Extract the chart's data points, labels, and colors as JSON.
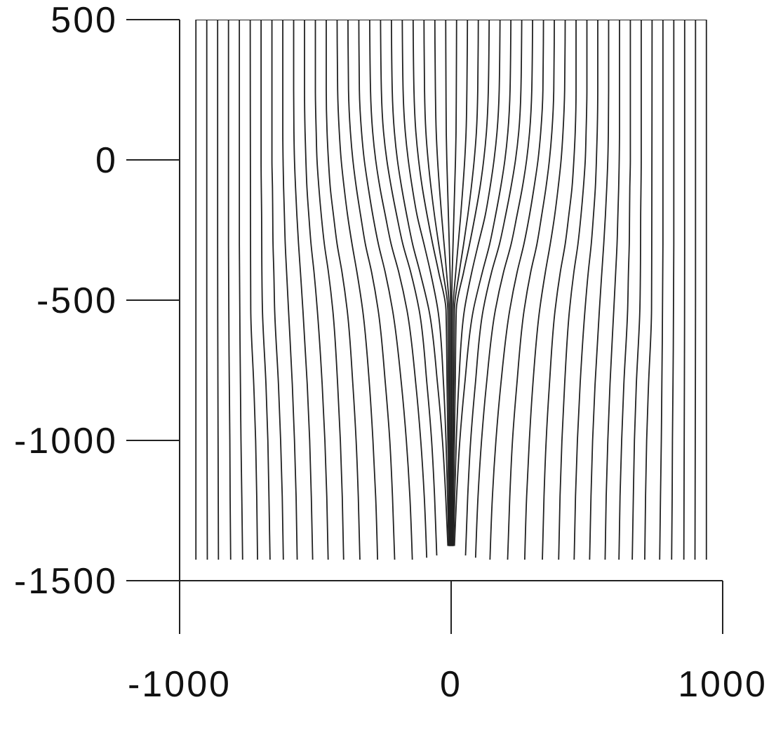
{
  "chart_data": {
    "type": "line",
    "xlim": [
      -1000,
      1000
    ],
    "ylim": [
      -1500,
      500
    ],
    "xticks": [
      -1000,
      0,
      1000
    ],
    "yticks": [
      -1500,
      -1000,
      -500,
      0,
      500
    ],
    "grid": false,
    "marker": "none",
    "line_style": "solid",
    "series": [
      {
        "color": "#222222",
        "x": [
          -940,
          -940
        ],
        "values": [
          500,
          -1425
        ]
      },
      {
        "color": "#222222",
        "x": [
          -900,
          -900,
          -899,
          -898
        ],
        "values": [
          500,
          -500,
          -1000,
          -1425
        ]
      },
      {
        "color": "#222222",
        "x": [
          -860,
          -860,
          -859,
          -858,
          -857
        ],
        "values": [
          500,
          -300,
          -800,
          -1100,
          -1425
        ]
      },
      {
        "color": "#222222",
        "x": [
          -820,
          -820,
          -817,
          -815,
          -814,
          -812
        ],
        "values": [
          500,
          -300,
          -800,
          -1000,
          -1200,
          -1425
        ]
      },
      {
        "color": "#222222",
        "x": [
          -780,
          -780,
          -776,
          -774,
          -771,
          -768
        ],
        "values": [
          500,
          -300,
          -800,
          -1000,
          -1200,
          -1425
        ]
      },
      {
        "color": "#222222",
        "x": [
          -740,
          -739,
          -738,
          -727,
          -720,
          -716,
          -713
        ],
        "values": [
          500,
          -200,
          -534,
          -800,
          -1000,
          -1200,
          -1425
        ]
      },
      {
        "color": "#222222",
        "x": [
          -700,
          -700,
          -698,
          -697,
          -695,
          -682,
          -675,
          -671,
          -667
        ],
        "values": [
          500,
          0,
          -200,
          -400,
          -534,
          -800,
          -1000,
          -1200,
          -1425
        ]
      },
      {
        "color": "#222222",
        "x": [
          -660,
          -660,
          -660,
          -660,
          -658,
          -657,
          -656,
          -653,
          -650,
          -636,
          -628,
          -622,
          -618
        ],
        "values": [
          500,
          250,
          100,
          0,
          -100,
          -200,
          -300,
          -400,
          -534,
          -800,
          -1000,
          -1200,
          -1425
        ]
      },
      {
        "color": "#222222",
        "x": [
          -620,
          -620,
          -620,
          -619,
          -617,
          -614,
          -611,
          -606,
          -599,
          -585,
          -577,
          -571,
          -567
        ],
        "values": [
          500,
          250,
          100,
          0,
          -100,
          -200,
          -300,
          -400,
          -534,
          -800,
          -1000,
          -1200,
          -1425
        ]
      },
      {
        "color": "#222222",
        "x": [
          -580,
          -580,
          -579,
          -577,
          -573,
          -568,
          -562,
          -555,
          -546,
          -530,
          -521,
          -515,
          -510
        ],
        "values": [
          500,
          250,
          100,
          0,
          -100,
          -200,
          -300,
          -400,
          -534,
          -800,
          -1000,
          -1200,
          -1425
        ]
      },
      {
        "color": "#222222",
        "x": [
          -540,
          -540,
          -538,
          -535,
          -531,
          -524,
          -516,
          -505,
          -493,
          -475,
          -465,
          -458,
          -453
        ],
        "values": [
          500,
          250,
          100,
          0,
          -100,
          -200,
          -300,
          -400,
          -534,
          -800,
          -1000,
          -1200,
          -1425
        ]
      },
      {
        "color": "#222222",
        "x": [
          -500,
          -500,
          -497,
          -494,
          -487,
          -478,
          -467,
          -452,
          -436,
          -418,
          -408,
          -401,
          -396
        ],
        "values": [
          500,
          250,
          100,
          0,
          -100,
          -200,
          -300,
          -400,
          -534,
          -800,
          -1000,
          -1200,
          -1425
        ]
      },
      {
        "color": "#222222",
        "x": [
          -460,
          -460,
          -457,
          -452,
          -445,
          -433,
          -420,
          -402,
          -383,
          -362,
          -350,
          -342,
          -336
        ],
        "values": [
          500,
          250,
          100,
          0,
          -100,
          -200,
          -300,
          -400,
          -534,
          -800,
          -1000,
          -1200,
          -1425
        ]
      },
      {
        "color": "#222222",
        "x": [
          -420,
          -418,
          -412,
          -405,
          -394,
          -381,
          -365,
          -347,
          -326,
          -301,
          -288,
          -278,
          -271
        ],
        "values": [
          500,
          250,
          100,
          0,
          -100,
          -200,
          -300,
          -400,
          -534,
          -800,
          -1000,
          -1200,
          -1425
        ]
      },
      {
        "color": "#222222",
        "x": [
          -380,
          -378,
          -371,
          -362,
          -349,
          -333,
          -316,
          -293,
          -269,
          -242,
          -226,
          -216,
          -208
        ],
        "values": [
          500,
          250,
          100,
          0,
          -100,
          -200,
          -300,
          -400,
          -534,
          -800,
          -1000,
          -1200,
          -1425
        ]
      },
      {
        "color": "#222222",
        "x": [
          -340,
          -338,
          -330,
          -320,
          -305,
          -288,
          -268,
          -243,
          -216,
          -183,
          -165,
          -152,
          -143
        ],
        "values": [
          500,
          250,
          100,
          0,
          -100,
          -200,
          -300,
          -400,
          -534,
          -800,
          -1000,
          -1200,
          -1425
        ]
      },
      {
        "color": "#222222",
        "x": [
          -300,
          -297,
          -289,
          -278,
          -262,
          -242,
          -221,
          -193,
          -163,
          -130,
          -112,
          -99,
          -90
        ],
        "values": [
          500,
          250,
          100,
          0,
          -100,
          -200,
          -300,
          -400,
          -534,
          -800,
          -1000,
          -1200,
          -1418
        ]
      },
      {
        "color": "#222222",
        "x": [
          -260,
          -257,
          -249,
          -237,
          -220,
          -200,
          -178,
          -149,
          -118,
          -89,
          -72,
          -61,
          -53
        ],
        "values": [
          500,
          250,
          100,
          0,
          -100,
          -200,
          -300,
          -400,
          -534,
          -800,
          -1000,
          -1200,
          -1410
        ]
      },
      {
        "color": "#222222",
        "x": [
          -220,
          -217,
          -209,
          -198,
          -182,
          -163,
          -142,
          -115,
          -82,
          -50,
          -32,
          -20,
          -12
        ],
        "values": [
          500,
          250,
          100,
          0,
          -100,
          -200,
          -300,
          -400,
          -534,
          -800,
          -1000,
          -1200,
          -1376
        ]
      },
      {
        "color": "#222222",
        "x": [
          -180,
          -177,
          -169,
          -158,
          -143,
          -125,
          -100,
          -76,
          -49,
          -28,
          -19,
          -13,
          -9
        ],
        "values": [
          500,
          250,
          100,
          0,
          -100,
          -200,
          -300,
          -400,
          -534,
          -800,
          -1000,
          -1200,
          -1376
        ]
      },
      {
        "color": "#222222",
        "x": [
          -140,
          -137,
          -130,
          -120,
          -106,
          -88,
          -68,
          -46,
          -19,
          -15,
          -12,
          -9,
          -7
        ],
        "values": [
          500,
          250,
          100,
          0,
          -100,
          -200,
          -300,
          -400,
          -534,
          -800,
          -1000,
          -1200,
          -1376
        ]
      },
      {
        "color": "#222222",
        "x": [
          -100,
          -98,
          -93,
          -85,
          -74,
          -61,
          -46,
          -30,
          -12,
          -10,
          -8,
          -6,
          -5
        ],
        "values": [
          500,
          250,
          100,
          0,
          -100,
          -200,
          -300,
          -400,
          -534,
          -800,
          -1000,
          -1200,
          -1376
        ]
      },
      {
        "color": "#222222",
        "x": [
          -60,
          -58,
          -55,
          -50,
          -43,
          -35,
          -26,
          -17,
          -7,
          -6,
          -5,
          -4,
          -3
        ],
        "values": [
          500,
          250,
          100,
          0,
          -100,
          -200,
          -300,
          -400,
          -534,
          -800,
          -1000,
          -1200,
          -1376
        ]
      },
      {
        "color": "#222222",
        "x": [
          -20,
          -19,
          -18,
          -16,
          -13,
          -10,
          -7,
          -4,
          -2,
          -2,
          -1,
          -1,
          -1
        ],
        "values": [
          500,
          250,
          100,
          0,
          -100,
          -200,
          -300,
          -400,
          -534,
          -800,
          -1000,
          -1200,
          -1376
        ]
      },
      {
        "color": "#222222",
        "x": [
          20,
          19,
          18,
          16,
          13,
          10,
          7,
          4,
          2,
          2,
          1,
          1,
          1
        ],
        "values": [
          500,
          250,
          100,
          0,
          -100,
          -200,
          -300,
          -400,
          -534,
          -800,
          -1000,
          -1200,
          -1376
        ]
      },
      {
        "color": "#222222",
        "x": [
          60,
          58,
          55,
          50,
          43,
          35,
          26,
          17,
          7,
          6,
          5,
          4,
          3
        ],
        "values": [
          500,
          250,
          100,
          0,
          -100,
          -200,
          -300,
          -400,
          -534,
          -800,
          -1000,
          -1200,
          -1376
        ]
      },
      {
        "color": "#222222",
        "x": [
          100,
          98,
          93,
          85,
          74,
          61,
          46,
          30,
          12,
          10,
          8,
          6,
          5
        ],
        "values": [
          500,
          250,
          100,
          0,
          -100,
          -200,
          -300,
          -400,
          -534,
          -800,
          -1000,
          -1200,
          -1376
        ]
      },
      {
        "color": "#222222",
        "x": [
          140,
          137,
          130,
          120,
          106,
          88,
          68,
          46,
          19,
          15,
          12,
          9,
          7
        ],
        "values": [
          500,
          250,
          100,
          0,
          -100,
          -200,
          -300,
          -400,
          -534,
          -800,
          -1000,
          -1200,
          -1376
        ]
      },
      {
        "color": "#222222",
        "x": [
          180,
          177,
          169,
          158,
          143,
          125,
          100,
          76,
          49,
          28,
          19,
          13,
          9
        ],
        "values": [
          500,
          250,
          100,
          0,
          -100,
          -200,
          -300,
          -400,
          -534,
          -800,
          -1000,
          -1200,
          -1376
        ]
      },
      {
        "color": "#222222",
        "x": [
          220,
          217,
          209,
          198,
          182,
          163,
          142,
          115,
          82,
          50,
          32,
          20,
          12
        ],
        "values": [
          500,
          250,
          100,
          0,
          -100,
          -200,
          -300,
          -400,
          -534,
          -800,
          -1000,
          -1200,
          -1376
        ]
      },
      {
        "color": "#222222",
        "x": [
          260,
          257,
          249,
          237,
          220,
          200,
          178,
          149,
          118,
          89,
          72,
          61,
          53
        ],
        "values": [
          500,
          250,
          100,
          0,
          -100,
          -200,
          -300,
          -400,
          -534,
          -800,
          -1000,
          -1200,
          -1410
        ]
      },
      {
        "color": "#222222",
        "x": [
          300,
          297,
          289,
          278,
          262,
          242,
          221,
          193,
          163,
          130,
          112,
          99,
          90
        ],
        "values": [
          500,
          250,
          100,
          0,
          -100,
          -200,
          -300,
          -400,
          -534,
          -800,
          -1000,
          -1200,
          -1418
        ]
      },
      {
        "color": "#222222",
        "x": [
          340,
          338,
          330,
          320,
          305,
          288,
          268,
          243,
          216,
          183,
          165,
          152,
          143
        ],
        "values": [
          500,
          250,
          100,
          0,
          -100,
          -200,
          -300,
          -400,
          -534,
          -800,
          -1000,
          -1200,
          -1425
        ]
      },
      {
        "color": "#222222",
        "x": [
          380,
          378,
          371,
          362,
          349,
          333,
          316,
          293,
          269,
          242,
          226,
          216,
          208
        ],
        "values": [
          500,
          250,
          100,
          0,
          -100,
          -200,
          -300,
          -400,
          -534,
          -800,
          -1000,
          -1200,
          -1425
        ]
      },
      {
        "color": "#222222",
        "x": [
          420,
          418,
          412,
          405,
          394,
          381,
          365,
          347,
          326,
          301,
          288,
          278,
          271
        ],
        "values": [
          500,
          250,
          100,
          0,
          -100,
          -200,
          -300,
          -400,
          -534,
          -800,
          -1000,
          -1200,
          -1425
        ]
      },
      {
        "color": "#222222",
        "x": [
          460,
          460,
          457,
          452,
          445,
          433,
          420,
          402,
          383,
          362,
          350,
          342,
          336
        ],
        "values": [
          500,
          250,
          100,
          0,
          -100,
          -200,
          -300,
          -400,
          -534,
          -800,
          -1000,
          -1200,
          -1425
        ]
      },
      {
        "color": "#222222",
        "x": [
          500,
          500,
          497,
          494,
          487,
          478,
          467,
          452,
          436,
          418,
          408,
          401,
          396
        ],
        "values": [
          500,
          250,
          100,
          0,
          -100,
          -200,
          -300,
          -400,
          -534,
          -800,
          -1000,
          -1200,
          -1425
        ]
      },
      {
        "color": "#222222",
        "x": [
          540,
          540,
          538,
          535,
          531,
          524,
          516,
          505,
          493,
          475,
          465,
          458,
          453
        ],
        "values": [
          500,
          250,
          100,
          0,
          -100,
          -200,
          -300,
          -400,
          -534,
          -800,
          -1000,
          -1200,
          -1425
        ]
      },
      {
        "color": "#222222",
        "x": [
          580,
          580,
          579,
          577,
          573,
          568,
          562,
          555,
          546,
          530,
          521,
          515,
          510
        ],
        "values": [
          500,
          250,
          100,
          0,
          -100,
          -200,
          -300,
          -400,
          -534,
          -800,
          -1000,
          -1200,
          -1425
        ]
      },
      {
        "color": "#222222",
        "x": [
          620,
          620,
          620,
          619,
          617,
          614,
          611,
          606,
          599,
          585,
          577,
          571,
          567
        ],
        "values": [
          500,
          250,
          100,
          0,
          -100,
          -200,
          -300,
          -400,
          -534,
          -800,
          -1000,
          -1200,
          -1425
        ]
      },
      {
        "color": "#222222",
        "x": [
          660,
          660,
          660,
          660,
          658,
          657,
          656,
          653,
          650,
          636,
          628,
          622,
          618
        ],
        "values": [
          500,
          250,
          100,
          0,
          -100,
          -200,
          -300,
          -400,
          -534,
          -800,
          -1000,
          -1200,
          -1425
        ]
      },
      {
        "color": "#222222",
        "x": [
          700,
          700,
          698,
          697,
          695,
          682,
          675,
          671,
          667
        ],
        "values": [
          500,
          0,
          -200,
          -400,
          -534,
          -800,
          -1000,
          -1200,
          -1425
        ]
      },
      {
        "color": "#222222",
        "x": [
          740,
          739,
          738,
          727,
          720,
          716,
          713
        ],
        "values": [
          500,
          -200,
          -534,
          -800,
          -1000,
          -1200,
          -1425
        ]
      },
      {
        "color": "#222222",
        "x": [
          780,
          780,
          776,
          774,
          771,
          768
        ],
        "values": [
          500,
          -300,
          -800,
          -1000,
          -1200,
          -1425
        ]
      },
      {
        "color": "#222222",
        "x": [
          820,
          820,
          817,
          815,
          814,
          812
        ],
        "values": [
          500,
          -300,
          -800,
          -1000,
          -1200,
          -1425
        ]
      },
      {
        "color": "#222222",
        "x": [
          860,
          860,
          859,
          858,
          857
        ],
        "values": [
          500,
          -300,
          -800,
          -1100,
          -1425
        ]
      },
      {
        "color": "#222222",
        "x": [
          900,
          900,
          899,
          898
        ],
        "values": [
          500,
          -500,
          -1000,
          -1425
        ]
      },
      {
        "color": "#222222",
        "x": [
          940,
          940
        ],
        "values": [
          500,
          -1425
        ]
      },
      {
        "color": "#222222",
        "x": [
          -940,
          940
        ],
        "values": [
          500,
          500
        ]
      }
    ]
  }
}
